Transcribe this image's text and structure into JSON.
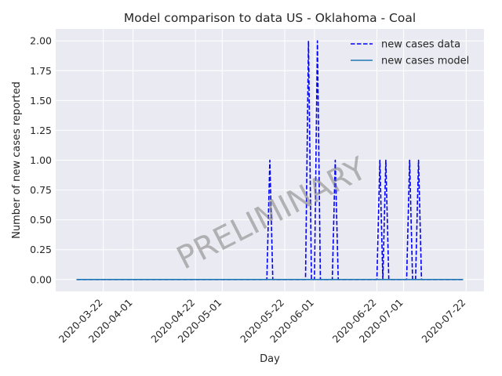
{
  "chart_data": {
    "type": "line",
    "title": "Model comparison to data US - Oklahoma - Coal",
    "xlabel": "Day",
    "ylabel": "Number of new cases reported",
    "x_axis_type": "date",
    "xlim": [
      "2020-03-06",
      "2020-07-28"
    ],
    "ylim": [
      -0.1,
      2.1
    ],
    "x_ticks": [
      "2020-03-22",
      "2020-04-01",
      "2020-04-22",
      "2020-05-01",
      "2020-05-22",
      "2020-06-01",
      "2020-06-22",
      "2020-07-01",
      "2020-07-22"
    ],
    "y_ticks": [
      0.0,
      0.25,
      0.5,
      0.75,
      1.0,
      1.25,
      1.5,
      1.75,
      2.0
    ],
    "y_tick_labels": [
      "0.00",
      "0.25",
      "0.50",
      "0.75",
      "1.00",
      "1.25",
      "1.50",
      "1.75",
      "2.00"
    ],
    "grid": true,
    "legend_position": "top-right",
    "watermark": "PRELIMINARY",
    "series": [
      {
        "name": "new cases data",
        "style": "dashed",
        "color": "#0000ff",
        "range": [
          "2020-03-13",
          "2020-07-21"
        ],
        "baseline": 0,
        "nonzero_points": [
          {
            "x": "2020-05-17",
            "y": 1
          },
          {
            "x": "2020-05-30",
            "y": 2
          },
          {
            "x": "2020-06-02",
            "y": 2
          },
          {
            "x": "2020-06-08",
            "y": 1
          },
          {
            "x": "2020-06-23",
            "y": 1
          },
          {
            "x": "2020-06-25",
            "y": 1
          },
          {
            "x": "2020-07-03",
            "y": 1
          },
          {
            "x": "2020-07-06",
            "y": 1
          }
        ]
      },
      {
        "name": "new cases model",
        "style": "solid",
        "color": "#1f77b4",
        "range": [
          "2020-03-13",
          "2020-07-21"
        ],
        "baseline": 0,
        "nonzero_points": []
      }
    ]
  }
}
